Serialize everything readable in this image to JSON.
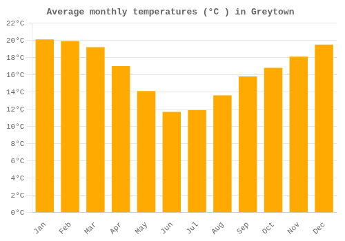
{
  "chart_data": {
    "type": "bar",
    "title": "Average monthly temperatures (°C ) in Greytown",
    "categories": [
      "Jan",
      "Feb",
      "Mar",
      "Apr",
      "May",
      "Jun",
      "Jul",
      "Aug",
      "Sep",
      "Oct",
      "Nov",
      "Dec"
    ],
    "values": [
      20.1,
      19.9,
      19.2,
      17.0,
      14.1,
      11.7,
      11.9,
      13.6,
      15.8,
      16.8,
      18.1,
      19.5
    ],
    "color": "#FFAA00",
    "ylim": [
      0,
      22
    ],
    "yticks": [
      {
        "value": 0,
        "label": "0°C"
      },
      {
        "value": 2,
        "label": "2°C"
      },
      {
        "value": 4,
        "label": "4°C"
      },
      {
        "value": 6,
        "label": "6°C"
      },
      {
        "value": 8,
        "label": "8°C"
      },
      {
        "value": 10,
        "label": "10°C"
      },
      {
        "value": 12,
        "label": "12°C"
      },
      {
        "value": 14,
        "label": "14°C"
      },
      {
        "value": 16,
        "label": "16°C"
      },
      {
        "value": 18,
        "label": "18°C"
      },
      {
        "value": 20,
        "label": "20°C"
      },
      {
        "value": 22,
        "label": "22°C"
      }
    ],
    "grid": true
  }
}
